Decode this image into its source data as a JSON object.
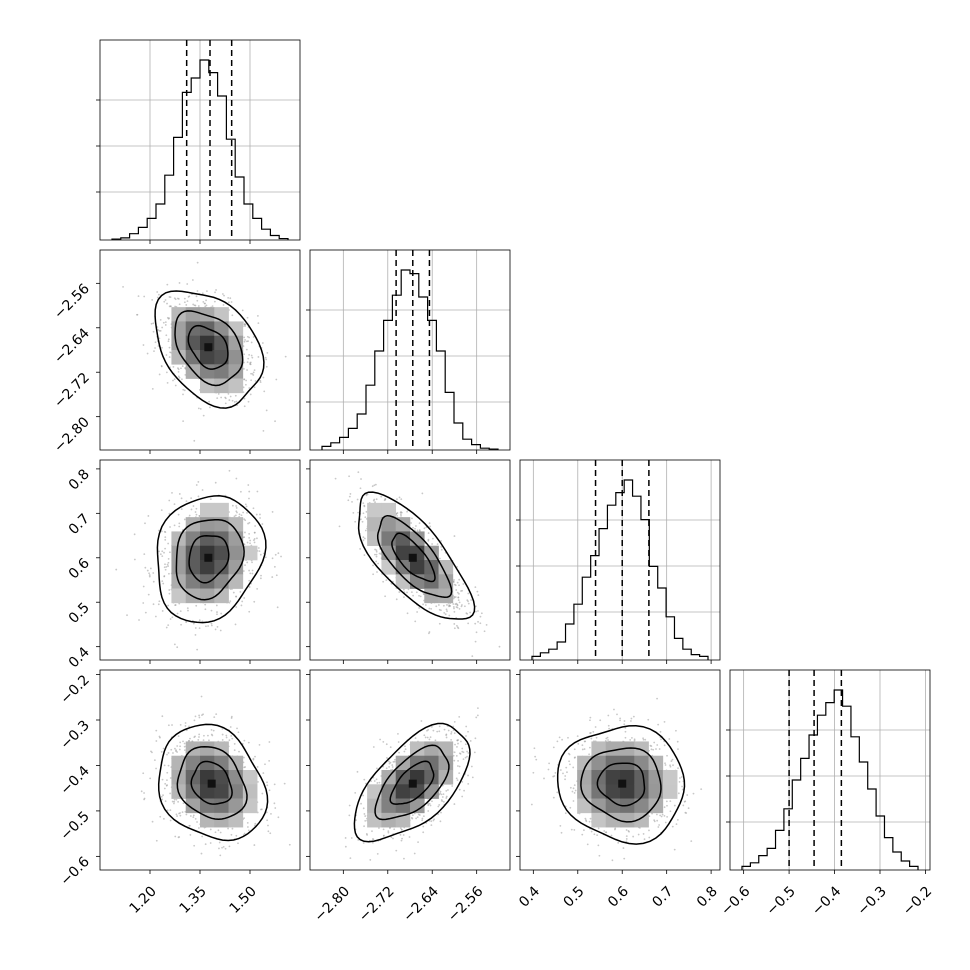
{
  "chart_data": {
    "type": "corner",
    "parameters": [
      {
        "index": 0,
        "range": [
          1.05,
          1.65
        ],
        "quantiles": [
          1.31,
          1.38,
          1.445
        ],
        "ticks": [
          {
            "v": 1.2,
            "label": "1.20"
          },
          {
            "v": 1.35,
            "label": "1.35"
          },
          {
            "v": 1.5,
            "label": "1.50"
          }
        ],
        "hist": [
          0.005,
          0.012,
          0.035,
          0.07,
          0.12,
          0.2,
          0.36,
          0.57,
          0.82,
          0.9,
          1.0,
          0.93,
          0.8,
          0.56,
          0.35,
          0.2,
          0.12,
          0.06,
          0.025,
          0.008
        ]
      },
      {
        "index": 1,
        "range": [
          -2.86,
          -2.5
        ],
        "quantiles": [
          -2.705,
          -2.675,
          -2.645
        ],
        "ticks": [
          {
            "v": -2.8,
            "label": "−2.80"
          },
          {
            "v": -2.72,
            "label": "−2.72"
          },
          {
            "v": -2.64,
            "label": "−2.64"
          },
          {
            "v": -2.56,
            "label": "−2.56"
          }
        ],
        "hist": [
          0.02,
          0.04,
          0.07,
          0.12,
          0.2,
          0.36,
          0.55,
          0.72,
          0.86,
          1.0,
          0.98,
          0.85,
          0.72,
          0.55,
          0.32,
          0.15,
          0.06,
          0.03,
          0.01,
          0.005
        ]
      },
      {
        "index": 2,
        "range": [
          0.37,
          0.82
        ],
        "quantiles": [
          0.54,
          0.6,
          0.66
        ],
        "ticks": [
          {
            "v": 0.4,
            "label": "0.4"
          },
          {
            "v": 0.5,
            "label": "0.5"
          },
          {
            "v": 0.6,
            "label": "0.6"
          },
          {
            "v": 0.7,
            "label": "0.7"
          },
          {
            "v": 0.8,
            "label": "0.8"
          }
        ],
        "hist": [
          0.02,
          0.04,
          0.06,
          0.1,
          0.2,
          0.31,
          0.46,
          0.58,
          0.73,
          0.86,
          0.93,
          1.0,
          0.91,
          0.78,
          0.52,
          0.4,
          0.24,
          0.12,
          0.06,
          0.03,
          0.02
        ]
      },
      {
        "index": 3,
        "range": [
          -0.63,
          -0.19
        ],
        "quantiles": [
          -0.5,
          -0.445,
          -0.385
        ],
        "ticks": [
          {
            "v": -0.6,
            "label": "−0.6"
          },
          {
            "v": -0.5,
            "label": "−0.5"
          },
          {
            "v": -0.4,
            "label": "−0.4"
          },
          {
            "v": -0.3,
            "label": "−0.3"
          },
          {
            "v": -0.2,
            "label": "−0.2"
          }
        ],
        "hist": [
          0.02,
          0.04,
          0.08,
          0.12,
          0.22,
          0.34,
          0.5,
          0.62,
          0.75,
          0.86,
          0.93,
          1.0,
          0.91,
          0.74,
          0.6,
          0.45,
          0.3,
          0.18,
          0.1,
          0.05,
          0.02
        ]
      }
    ],
    "pairs": [
      {
        "x": 0,
        "y": 1,
        "mean": [
          1.375,
          -2.675
        ],
        "sd": [
          0.07,
          0.045
        ],
        "corr": -0.35
      },
      {
        "x": 0,
        "y": 2,
        "mean": [
          1.375,
          0.6
        ],
        "sd": [
          0.07,
          0.062
        ],
        "corr": 0.15
      },
      {
        "x": 1,
        "y": 2,
        "mean": [
          -2.675,
          0.6
        ],
        "sd": [
          0.045,
          0.062
        ],
        "corr": -0.72
      },
      {
        "x": 0,
        "y": 3,
        "mean": [
          1.385,
          -0.44
        ],
        "sd": [
          0.07,
          0.055
        ],
        "corr": -0.2
      },
      {
        "x": 1,
        "y": 3,
        "mean": [
          -2.675,
          -0.44
        ],
        "sd": [
          0.045,
          0.055
        ],
        "corr": 0.6
      },
      {
        "x": 2,
        "y": 3,
        "mean": [
          0.6,
          -0.44
        ],
        "sd": [
          0.062,
          0.055
        ],
        "corr": -0.05
      }
    ],
    "grid": true,
    "title": "",
    "axis_labels": [
      "",
      "",
      "",
      ""
    ]
  }
}
